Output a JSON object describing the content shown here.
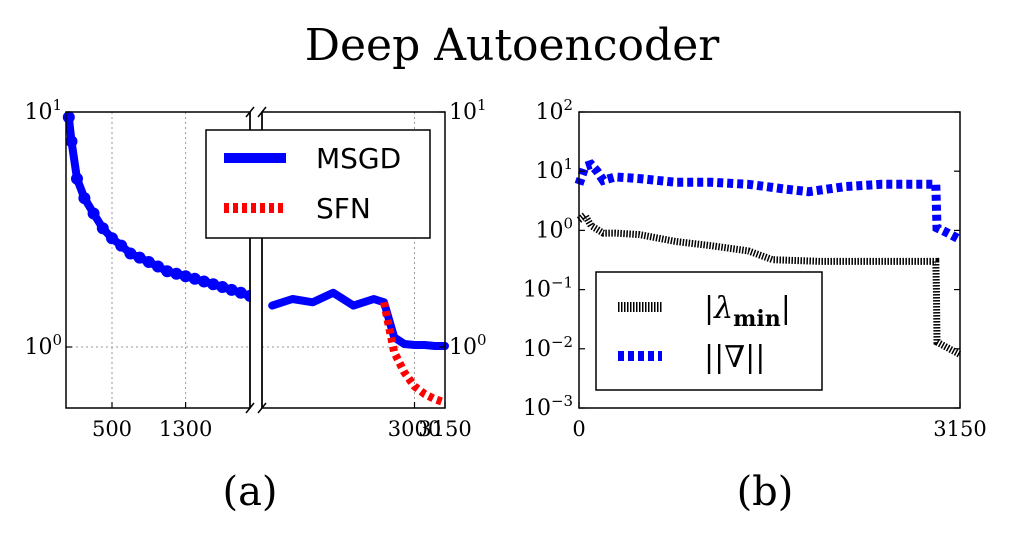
{
  "figure": {
    "title": "Deep Autoencoder",
    "panel_a_label": "(a)",
    "panel_b_label": "(b)"
  },
  "chart_data": [
    {
      "type": "line",
      "panel": "(a)",
      "yscale": "log",
      "ylim": [
        0.55,
        10
      ],
      "y_ticks": [
        {
          "value": 1,
          "label": "10⁰"
        },
        {
          "value": 10,
          "label": "10¹"
        }
      ],
      "x_break": true,
      "xlim_left": [
        0,
        2000
      ],
      "xlim_right": [
        2250,
        3150
      ],
      "x_ticks": [
        500,
        1300,
        3000,
        3150
      ],
      "grid": true,
      "legend_placement": "top-right",
      "series": [
        {
          "name": "MSGD",
          "color": "#0000ff",
          "style": "solid",
          "x": [
            30,
            60,
            120,
            200,
            300,
            400,
            500,
            600,
            700,
            800,
            900,
            1000,
            1100,
            1200,
            1300,
            1400,
            1500,
            1600,
            1700,
            1800,
            1900,
            2000,
            2300,
            2400,
            2500,
            2600,
            2700,
            2800,
            2850,
            2900,
            2950,
            3000,
            3050,
            3100,
            3150
          ],
          "y": [
            9.5,
            7.5,
            5.2,
            4.3,
            3.7,
            3.2,
            2.9,
            2.7,
            2.5,
            2.4,
            2.3,
            2.2,
            2.1,
            2.05,
            2.0,
            1.95,
            1.9,
            1.85,
            1.8,
            1.75,
            1.7,
            1.65,
            1.5,
            1.6,
            1.55,
            1.7,
            1.5,
            1.6,
            1.55,
            1.1,
            1.03,
            1.02,
            1.02,
            1.01,
            1.01
          ]
        },
        {
          "name": "SFN",
          "color": "#ff0000",
          "style": "dotted",
          "x": [
            2850,
            2900,
            2950,
            3000,
            3050,
            3100,
            3150
          ],
          "y": [
            1.55,
            0.95,
            0.78,
            0.68,
            0.63,
            0.6,
            0.58
          ]
        }
      ]
    },
    {
      "type": "line",
      "panel": "(b)",
      "yscale": "log",
      "ylim": [
        0.001,
        100
      ],
      "y_ticks": [
        {
          "value": 100,
          "label": "10²"
        },
        {
          "value": 10,
          "label": "10¹"
        },
        {
          "value": 1,
          "label": "10⁰"
        },
        {
          "value": 0.1,
          "label": "10⁻¹"
        },
        {
          "value": 0.01,
          "label": "10⁻²"
        },
        {
          "value": 0.001,
          "label": "10⁻³"
        }
      ],
      "xlim": [
        0,
        3150
      ],
      "x_ticks": [
        0,
        3150
      ],
      "grid": false,
      "legend_placement": "bottom-left",
      "series": [
        {
          "name": "|λmin|",
          "color": "#000000",
          "style": "dotted",
          "x": [
            0,
            50,
            100,
            200,
            300,
            500,
            800,
            1100,
            1400,
            1600,
            2000,
            2500,
            2950,
            2955,
            2960,
            3150
          ],
          "y": [
            1.5,
            1.8,
            1.2,
            0.9,
            0.9,
            0.85,
            0.65,
            0.55,
            0.45,
            0.32,
            0.3,
            0.3,
            0.3,
            0.1,
            0.013,
            0.008
          ]
        },
        {
          "name": "||∇||",
          "color": "#0000ff",
          "style": "dotted",
          "x": [
            0,
            50,
            100,
            150,
            200,
            300,
            500,
            800,
            1100,
            1400,
            1700,
            1900,
            2200,
            2500,
            2800,
            2950,
            2960,
            3050,
            3150
          ],
          "y": [
            6,
            12,
            13,
            10,
            7,
            8,
            7.5,
            6.5,
            6.5,
            6,
            5,
            4.5,
            5.5,
            6,
            6,
            6,
            1.1,
            0.9,
            0.7
          ]
        }
      ]
    }
  ]
}
